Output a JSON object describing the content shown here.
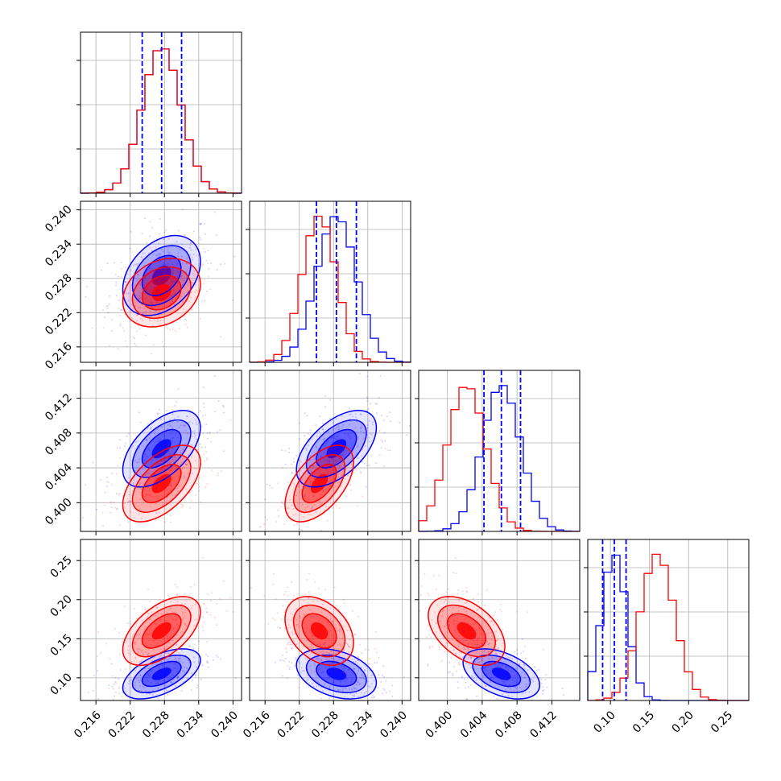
{
  "chart_data": {
    "type": "corner",
    "title": "",
    "parameters": [
      {
        "ticks": [
          0.216,
          0.222,
          0.228,
          0.234,
          0.24
        ],
        "tick_labels": [
          "0.216",
          "0.222",
          "0.228",
          "0.234",
          "0.240"
        ],
        "range": [
          0.2133,
          0.2415
        ]
      },
      {
        "ticks": [
          0.216,
          0.222,
          0.228,
          0.234,
          0.24
        ],
        "tick_labels": [
          "0.216",
          "0.222",
          "0.228",
          "0.234",
          "0.240"
        ],
        "range": [
          0.2133,
          0.2415
        ]
      },
      {
        "ticks": [
          0.4,
          0.404,
          0.408,
          0.412
        ],
        "tick_labels": [
          "0.400",
          "0.404",
          "0.408",
          "0.412"
        ],
        "range": [
          0.3967,
          0.4152
        ]
      },
      {
        "ticks": [
          0.1,
          0.15,
          0.2,
          0.25
        ],
        "tick_labels": [
          "0.10",
          "0.15",
          "0.20",
          "0.25"
        ],
        "range": [
          0.071,
          0.277
        ]
      }
    ],
    "series": [
      {
        "color": "#0000ff",
        "means": [
          0.2275,
          0.2285,
          0.4062,
          0.105
        ],
        "sigmas": [
          0.0034,
          0.0035,
          0.0022,
          0.016
        ],
        "quantiles_16_50_84": [
          [
            0.2241,
            0.2275,
            0.231
          ],
          [
            0.225,
            0.2285,
            0.232
          ],
          [
            0.4042,
            0.4062,
            0.4084
          ],
          [
            0.09,
            0.105,
            0.12
          ]
        ],
        "correlations": {
          "0-1": 0.35,
          "0-2": 0.55,
          "0-3": 0.55,
          "1-2": 0.55,
          "1-3": -0.35,
          "2-3": -0.45
        }
      },
      {
        "color": "#ff0000",
        "means": [
          0.2275,
          0.2255,
          0.4022,
          0.16
        ],
        "sigmas": [
          0.0034,
          0.003,
          0.0022,
          0.022
        ],
        "correlations": {
          "0-1": 0.25,
          "0-2": 0.55,
          "0-3": 0.55,
          "1-2": 0.55,
          "1-3": -0.35,
          "2-3": -0.45
        }
      }
    ],
    "grid": true,
    "legend": "none"
  }
}
